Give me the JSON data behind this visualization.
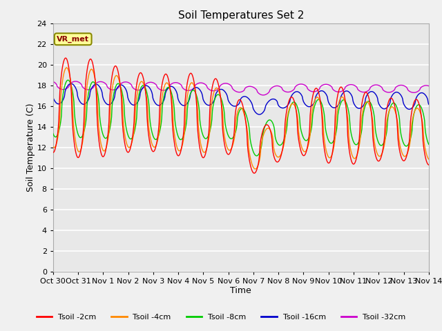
{
  "title": "Soil Temperatures Set 2",
  "xlabel": "Time",
  "ylabel": "Soil Temperature (C)",
  "ylim": [
    0,
    24
  ],
  "annotation": "VR_met",
  "series_colors": [
    "#ff0000",
    "#ff8800",
    "#00cc00",
    "#0000cc",
    "#cc00cc"
  ],
  "series_labels": [
    "Tsoil -2cm",
    "Tsoil -4cm",
    "Tsoil -8cm",
    "Tsoil -16cm",
    "Tsoil -32cm"
  ],
  "xtick_labels": [
    "Oct 30",
    "Oct 31",
    "Nov 1",
    "Nov 2",
    "Nov 3",
    "Nov 4",
    "Nov 5",
    "Nov 6",
    "Nov 7",
    "Nov 8",
    "Nov 9",
    "Nov 10",
    "Nov 11",
    "Nov 12",
    "Nov 13",
    "Nov 14"
  ],
  "plot_bg_color": "#e8e8e8",
  "title_fontsize": 11,
  "axis_fontsize": 9,
  "tick_fontsize": 8,
  "legend_fontsize": 8
}
